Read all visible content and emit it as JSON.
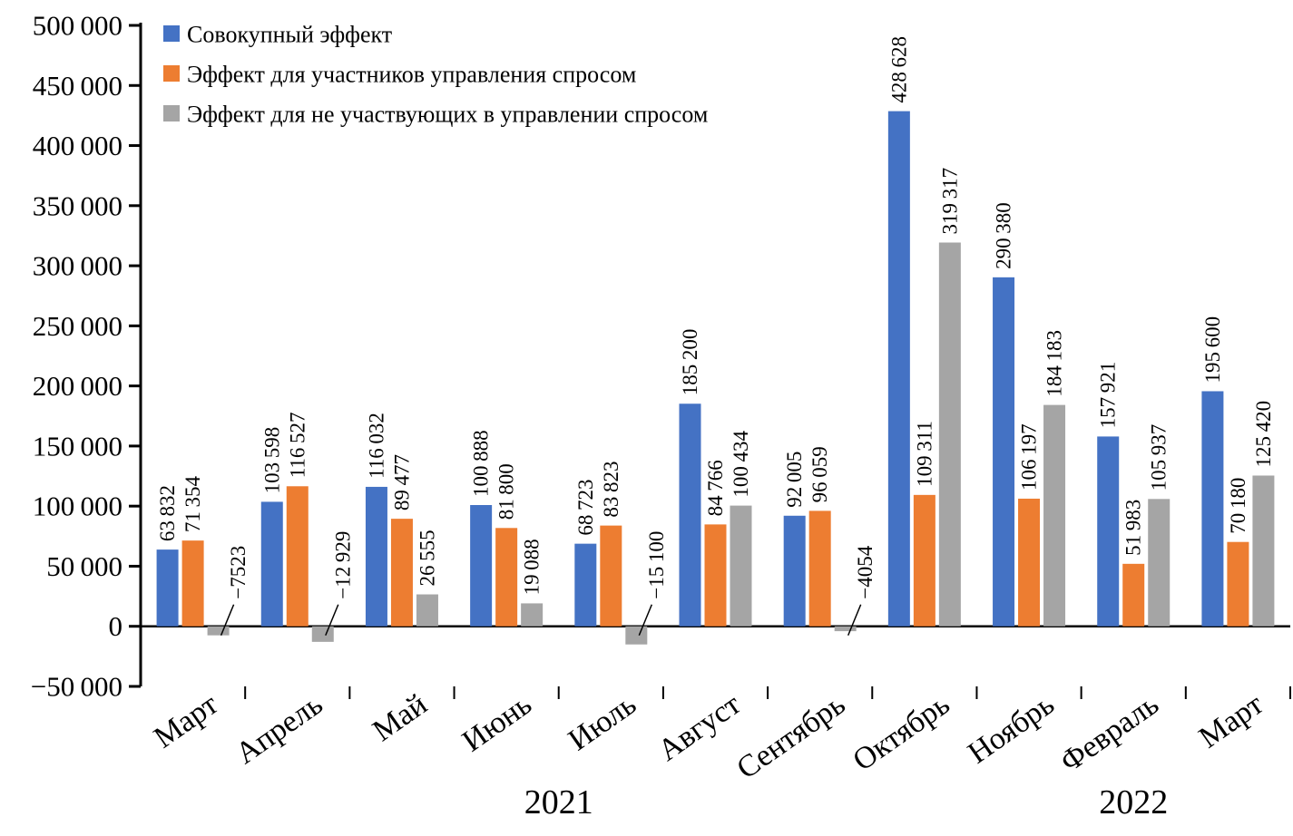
{
  "chart_data": {
    "type": "bar",
    "title": "",
    "xlabel": "",
    "ylabel": "",
    "categories": [
      "Март",
      "Апрель",
      "Май",
      "Июнь",
      "Июль",
      "Август",
      "Сентябрь",
      "Октябрь",
      "Ноябрь",
      "Февраль",
      "Март"
    ],
    "series": [
      {
        "name": "Совокупный эффект",
        "color": "#4472C4",
        "values": [
          63832,
          103598,
          116032,
          100888,
          68723,
          185200,
          92005,
          428628,
          290380,
          157921,
          195600
        ]
      },
      {
        "name": "Эффект для участников управления спросом",
        "color": "#ED7D31",
        "values": [
          71354,
          116527,
          89477,
          81800,
          83823,
          84766,
          96059,
          109311,
          106197,
          51983,
          70180
        ]
      },
      {
        "name": "Эффект для не участвующих в управлении спросом",
        "color": "#A5A5A5",
        "values": [
          -7523,
          -12929,
          26555,
          19088,
          -15100,
          100434,
          -4054,
          319317,
          184183,
          105937,
          125420
        ]
      }
    ],
    "ylim": [
      -50000,
      500000
    ],
    "ytick_step": 50000,
    "grid": false,
    "legend_position": "top-left",
    "bar_value_labels": true,
    "value_label_rotation_deg": 90,
    "axis_color": "#000000",
    "year_labels": [
      {
        "label": "2021",
        "months_span": "Март–Ноябрь",
        "group_index": 3.5
      },
      {
        "label": "2022",
        "months_span": "Февраль–Март",
        "group_index": 9
      }
    ]
  }
}
